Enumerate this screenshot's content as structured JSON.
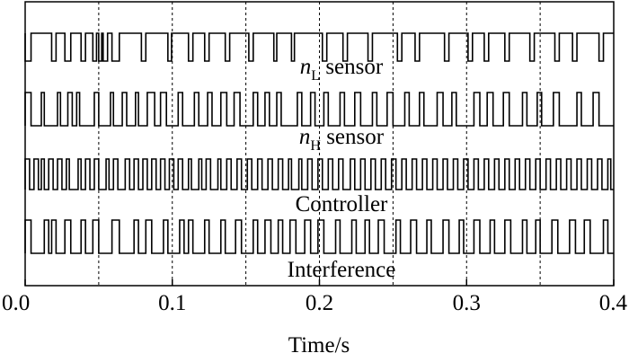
{
  "chart_data": {
    "type": "line",
    "xlabel": "Time/s",
    "xlim": [
      0.0,
      0.4
    ],
    "xticks": [
      "0.0",
      "0.1",
      "0.2",
      "0.3",
      "0.4"
    ],
    "grid_x": [
      0.05,
      0.1,
      0.15,
      0.2,
      0.25,
      0.3,
      0.35
    ],
    "series": [
      {
        "name": "nL sensor",
        "label_main": "n",
        "label_sub": "L",
        "label_rest": " sensor",
        "edges": [
          0.0,
          0.004,
          0.018,
          0.021,
          0.027,
          0.031,
          0.038,
          0.041,
          0.046,
          0.0485,
          0.05,
          0.052,
          0.053,
          0.056,
          0.059,
          0.064,
          0.079,
          0.082,
          0.097,
          0.0995,
          0.111,
          0.114,
          0.122,
          0.125,
          0.136,
          0.139,
          0.152,
          0.155,
          0.169,
          0.171,
          0.181,
          0.183,
          0.202,
          0.205,
          0.216,
          0.219,
          0.233,
          0.236,
          0.253,
          0.256,
          0.265,
          0.268,
          0.285,
          0.288,
          0.301,
          0.304,
          0.312,
          0.315,
          0.326,
          0.329,
          0.343,
          0.346,
          0.36,
          0.363,
          0.372,
          0.375,
          0.39,
          0.393
        ],
        "start_high": true
      },
      {
        "name": "nH sensor",
        "label_main": "n",
        "label_sub": "H",
        "label_rest": " sensor",
        "edges": [
          0.0,
          0.004,
          0.011,
          0.013,
          0.022,
          0.024,
          0.029,
          0.032,
          0.035,
          0.037,
          0.047,
          0.05,
          0.058,
          0.06,
          0.066,
          0.069,
          0.075,
          0.077,
          0.083,
          0.088,
          0.092,
          0.096,
          0.104,
          0.107,
          0.115,
          0.118,
          0.124,
          0.127,
          0.133,
          0.137,
          0.142,
          0.146,
          0.155,
          0.158,
          0.163,
          0.166,
          0.171,
          0.174,
          0.185,
          0.188,
          0.194,
          0.197,
          0.203,
          0.206,
          0.214,
          0.217,
          0.224,
          0.228,
          0.236,
          0.239,
          0.246,
          0.25,
          0.258,
          0.261,
          0.268,
          0.271,
          0.28,
          0.284,
          0.29,
          0.293,
          0.305,
          0.309,
          0.314,
          0.318,
          0.325,
          0.329,
          0.338,
          0.341,
          0.348,
          0.351,
          0.359,
          0.363,
          0.375,
          0.378,
          0.386,
          0.39
        ],
        "start_high": false
      },
      {
        "name": "Controller",
        "label_main": "Controller",
        "label_sub": "",
        "label_rest": "",
        "edges": [
          0.0,
          0.003,
          0.006,
          0.009,
          0.011,
          0.013,
          0.016,
          0.019,
          0.022,
          0.025,
          0.028,
          0.03,
          0.036,
          0.038,
          0.041,
          0.044,
          0.047,
          0.05,
          0.055,
          0.057,
          0.06,
          0.063,
          0.068,
          0.071,
          0.074,
          0.077,
          0.08,
          0.083,
          0.086,
          0.089,
          0.092,
          0.095,
          0.098,
          0.101,
          0.104,
          0.107,
          0.111,
          0.113,
          0.118,
          0.12,
          0.123,
          0.126,
          0.131,
          0.133,
          0.137,
          0.14,
          0.144,
          0.147,
          0.151,
          0.154,
          0.158,
          0.161,
          0.165,
          0.168,
          0.172,
          0.175,
          0.179,
          0.181,
          0.186,
          0.188,
          0.192,
          0.195,
          0.199,
          0.202,
          0.206,
          0.209,
          0.213,
          0.216,
          0.221,
          0.224,
          0.228,
          0.231,
          0.235,
          0.238,
          0.242,
          0.245,
          0.249,
          0.252,
          0.256,
          0.259,
          0.263,
          0.266,
          0.27,
          0.273,
          0.277,
          0.28,
          0.284,
          0.287,
          0.291,
          0.294,
          0.298,
          0.301,
          0.305,
          0.308,
          0.312,
          0.315,
          0.319,
          0.322,
          0.326,
          0.329,
          0.333,
          0.336,
          0.34,
          0.343,
          0.347,
          0.35,
          0.354,
          0.357,
          0.361,
          0.364,
          0.368,
          0.371,
          0.375,
          0.378,
          0.382,
          0.385,
          0.389,
          0.392,
          0.396,
          0.398
        ],
        "start_high": false
      },
      {
        "name": "Interference",
        "label_main": "Interference",
        "label_sub": "",
        "label_rest": "",
        "edges": [
          0.0,
          0.004,
          0.013,
          0.016,
          0.018,
          0.021,
          0.027,
          0.031,
          0.038,
          0.041,
          0.046,
          0.05,
          0.059,
          0.064,
          0.074,
          0.077,
          0.082,
          0.086,
          0.094,
          0.097,
          0.105,
          0.108,
          0.111,
          0.114,
          0.122,
          0.125,
          0.133,
          0.136,
          0.143,
          0.147,
          0.155,
          0.158,
          0.163,
          0.167,
          0.172,
          0.175,
          0.18,
          0.184,
          0.19,
          0.194,
          0.199,
          0.203,
          0.211,
          0.214,
          0.222,
          0.225,
          0.231,
          0.234,
          0.24,
          0.244,
          0.252,
          0.255,
          0.262,
          0.266,
          0.273,
          0.276,
          0.284,
          0.288,
          0.295,
          0.298,
          0.305,
          0.309,
          0.316,
          0.319,
          0.326,
          0.33,
          0.338,
          0.341,
          0.347,
          0.35,
          0.358,
          0.362,
          0.37,
          0.374,
          0.38,
          0.384,
          0.393,
          0.396
        ],
        "start_high": false
      }
    ]
  }
}
